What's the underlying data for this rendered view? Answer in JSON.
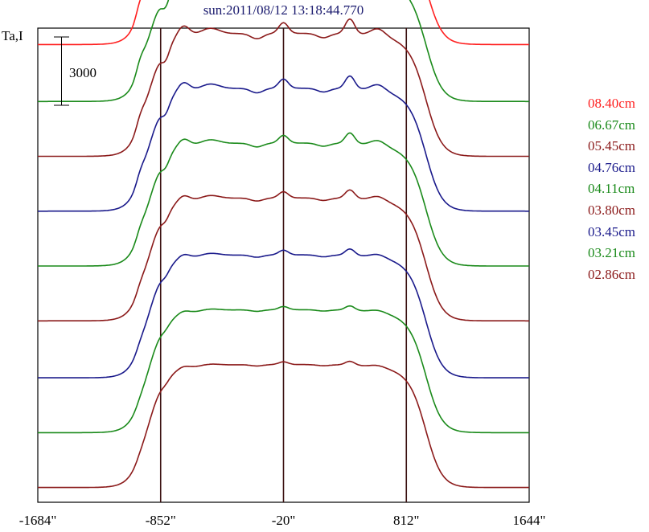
{
  "title": "sun:2011/08/12 13:18:44.770",
  "chart_data": {
    "type": "line",
    "ylabel": "Ta,I",
    "scale_bar_label": "3000",
    "x_ticks": [
      {
        "value": -1684,
        "label": "-1684\""
      },
      {
        "value": -852,
        "label": "-852\""
      },
      {
        "value": -20,
        "label": "-20\""
      },
      {
        "value": 812,
        "label": "812\""
      },
      {
        "value": 1644,
        "label": "1644\""
      }
    ],
    "xlim": [
      -1684,
      1644
    ],
    "vertical_lines": [
      -852,
      -20,
      812
    ],
    "series": [
      {
        "name": "08.40cm",
        "color": "#ff2020",
        "offset": 0.955
      },
      {
        "name": "06.67cm",
        "color": "#1a8a1a",
        "offset": 0.82
      },
      {
        "name": "05.45cm",
        "color": "#8b1a1a",
        "offset": 0.69
      },
      {
        "name": "04.76cm",
        "color": "#1a1a8b",
        "offset": 0.56
      },
      {
        "name": "04.11cm",
        "color": "#1a8a1a",
        "offset": 0.43
      },
      {
        "name": "03.80cm",
        "color": "#8b1a1a",
        "offset": 0.3
      },
      {
        "name": "03.45cm",
        "color": "#1a1a8b",
        "offset": 0.165
      },
      {
        "name": "03.21cm",
        "color": "#1a8a1a",
        "offset": 0.035
      },
      {
        "name": "02.86cm",
        "color": "#8b1a1a",
        "offset": -0.095
      }
    ]
  }
}
